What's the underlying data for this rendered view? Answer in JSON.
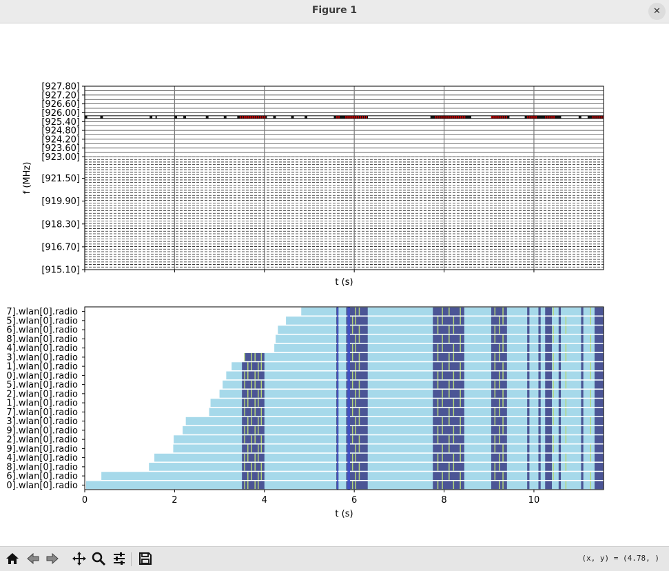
{
  "window": {
    "title": "Figure 1",
    "close_icon": "close-icon"
  },
  "toolbar": {
    "buttons": [
      "home-icon",
      "back-arrow-icon",
      "forward-arrow-icon",
      "pan-icon",
      "zoom-icon",
      "configure-subplots-icon",
      "save-icon"
    ],
    "coords_readout": "(x, y) = (4.78, )"
  },
  "chart_data": [
    {
      "type": "spectrum-occupancy",
      "xlabel": "t (s)",
      "ylabel": "f (MHz)",
      "xlim": [
        0,
        11.55
      ],
      "ylim": [
        915.1,
        927.8
      ],
      "xtick_values": [
        0,
        2,
        4,
        6,
        8,
        10
      ],
      "show_x_tick_labels": false,
      "ytick_labels": [
        "[927.80]",
        "[927.20]",
        "[926.60]",
        "[926.00]",
        "[925.40]",
        "[924.80]",
        "[924.20]",
        "[923.60]",
        "[923.00]",
        "[921.50]",
        "[919.90]",
        "[918.30]",
        "[916.70]",
        "[915.10]"
      ],
      "ytick_values": [
        927.8,
        927.2,
        926.6,
        926.0,
        925.4,
        924.8,
        924.2,
        923.6,
        923.0,
        921.5,
        919.9,
        918.3,
        916.7,
        915.1
      ],
      "grid": true,
      "dashed_channel_range": [
        915.1,
        923.0
      ],
      "active_channel_mhz": 925.7,
      "transmissions_outlined": [
        [
          0.05,
          0.35
        ],
        [
          0.4,
          1.45
        ],
        [
          1.5,
          1.58
        ],
        [
          1.6,
          2.0
        ],
        [
          2.05,
          2.2
        ],
        [
          2.25,
          2.7
        ],
        [
          2.75,
          3.1
        ],
        [
          3.15,
          3.4
        ],
        [
          4.05,
          4.2
        ],
        [
          4.25,
          4.6
        ],
        [
          4.65,
          4.9
        ],
        [
          4.95,
          5.55
        ],
        [
          6.3,
          7.7
        ],
        [
          8.6,
          9.05
        ],
        [
          9.45,
          9.8
        ],
        [
          10.6,
          11.0
        ],
        [
          11.05,
          11.2
        ]
      ],
      "collisions_red": [
        [
          3.45,
          3.55
        ],
        [
          3.58,
          4.0
        ],
        [
          5.6,
          5.65
        ],
        [
          5.8,
          6.3
        ],
        [
          7.8,
          8.45
        ],
        [
          9.05,
          9.4
        ],
        [
          9.85,
          10.05
        ],
        [
          10.25,
          10.45
        ],
        [
          11.3,
          11.55
        ]
      ]
    },
    {
      "type": "state-timeline",
      "xlabel": "t (s)",
      "xlim": [
        0,
        11.55
      ],
      "xticks": [
        "0",
        "2",
        "4",
        "6",
        "8",
        "10"
      ],
      "xtick_values": [
        0,
        2,
        4,
        6,
        8,
        10
      ],
      "grid": false,
      "colors": {
        "idle": "#a6d9ea",
        "busy": "#4b5595",
        "receiving": "#b4d57a",
        "transmitting": "#4050c8"
      },
      "rows": [
        {
          "label": "7].wlan[0].radio",
          "start": 4.82
        },
        {
          "label": "5].wlan[0].radio",
          "start": 4.48
        },
        {
          "label": "6].wlan[0].radio",
          "start": 4.3
        },
        {
          "label": "8].wlan[0].radio",
          "start": 4.25
        },
        {
          "label": "4].wlan[0].radio",
          "start": 4.22
        },
        {
          "label": "3].wlan[0].radio",
          "start": 3.55
        },
        {
          "label": "1].wlan[0].radio",
          "start": 3.27
        },
        {
          "label": "0].wlan[0].radio",
          "start": 3.15
        },
        {
          "label": "5].wlan[0].radio",
          "start": 3.07
        },
        {
          "label": "2].wlan[0].radio",
          "start": 3.0
        },
        {
          "label": "1].wlan[0].radio",
          "start": 2.8
        },
        {
          "label": "7].wlan[0].radio",
          "start": 2.77
        },
        {
          "label": "3].wlan[0].radio",
          "start": 2.25
        },
        {
          "label": "9].wlan[0].radio",
          "start": 2.18
        },
        {
          "label": "2].wlan[0].radio",
          "start": 1.98
        },
        {
          "label": "9].wlan[0].radio",
          "start": 1.97
        },
        {
          "label": "4].wlan[0].radio",
          "start": 1.55
        },
        {
          "label": "8].wlan[0].radio",
          "start": 1.43
        },
        {
          "label": "6].wlan[0].radio",
          "start": 0.37
        },
        {
          "label": "0].wlan[0].radio",
          "start": 0.03
        }
      ],
      "busy_periods": [
        [
          3.5,
          4.0
        ],
        [
          5.6,
          5.65
        ],
        [
          5.82,
          6.3
        ],
        [
          7.75,
          8.45
        ],
        [
          9.05,
          9.4
        ],
        [
          9.85,
          9.9
        ],
        [
          10.1,
          10.15
        ],
        [
          10.25,
          10.4
        ],
        [
          10.55,
          10.6
        ],
        [
          11.05,
          11.1
        ],
        [
          11.35,
          11.55
        ]
      ],
      "receiving_marks": [
        3.55,
        3.62,
        3.7,
        3.78,
        3.85,
        3.92,
        5.95,
        6.02,
        6.1,
        7.85,
        7.95,
        8.1,
        8.2,
        8.35,
        9.12,
        9.22,
        9.3,
        10.42,
        10.7,
        11.25
      ]
    }
  ]
}
